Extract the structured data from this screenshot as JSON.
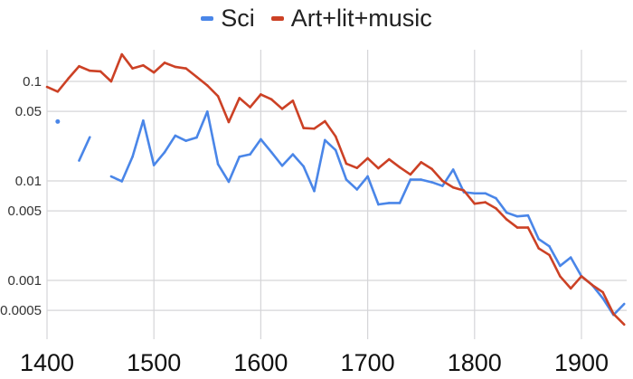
{
  "chart_data": {
    "type": "line",
    "title": "",
    "xlabel": "",
    "ylabel": "",
    "y_scale": "log",
    "xlim": [
      1400,
      1942
    ],
    "ylim": [
      0.00034,
      0.19
    ],
    "grid": true,
    "legend_position": "top",
    "x_ticks": [
      1400,
      1500,
      1600,
      1700,
      1800,
      1900
    ],
    "x_tick_labels": [
      "1400",
      "1500",
      "1600",
      "1700",
      "1800",
      "1900"
    ],
    "y_ticks": [
      0.1,
      0.05,
      0.01,
      0.005,
      0.001,
      0.0005
    ],
    "y_tick_labels": [
      "0.1",
      "0.05",
      "0.01",
      "0.005",
      "0.001",
      "0.0005"
    ],
    "x": [
      1400,
      1410,
      1420,
      1430,
      1440,
      1450,
      1460,
      1470,
      1480,
      1490,
      1500,
      1510,
      1520,
      1530,
      1540,
      1550,
      1560,
      1570,
      1580,
      1590,
      1600,
      1610,
      1620,
      1630,
      1640,
      1650,
      1660,
      1670,
      1680,
      1690,
      1700,
      1710,
      1720,
      1730,
      1740,
      1750,
      1760,
      1770,
      1780,
      1790,
      1800,
      1810,
      1820,
      1830,
      1840,
      1850,
      1860,
      1870,
      1880,
      1890,
      1900,
      1910,
      1920,
      1930,
      1940
    ],
    "series": [
      {
        "name": "Sci",
        "color": "#4a86e8",
        "values": [
          null,
          0.0395,
          null,
          0.016,
          0.0275,
          null,
          0.0111,
          0.0099,
          0.0175,
          0.0404,
          0.0144,
          0.0194,
          0.0285,
          0.0253,
          0.0273,
          0.0498,
          0.0147,
          0.0098,
          0.0175,
          0.0185,
          0.0262,
          0.0194,
          0.0142,
          0.0185,
          0.014,
          0.0079,
          0.0257,
          0.0204,
          0.0103,
          0.0082,
          0.0111,
          0.0058,
          0.006,
          0.006,
          0.0103,
          0.0103,
          0.0097,
          0.0089,
          0.013,
          0.0077,
          0.0075,
          0.0075,
          0.0067,
          0.0048,
          0.0044,
          0.0045,
          0.0026,
          0.0022,
          0.0014,
          0.0017,
          0.0011,
          0.0009,
          0.00066,
          0.00045,
          0.00058
        ]
      },
      {
        "name": "Art+lit+music",
        "color": "#cc4125",
        "values": [
          0.088,
          0.079,
          0.107,
          0.142,
          0.128,
          0.126,
          0.1,
          0.187,
          0.135,
          0.145,
          0.123,
          0.154,
          0.14,
          0.135,
          0.111,
          0.091,
          0.071,
          0.039,
          0.068,
          0.055,
          0.074,
          0.066,
          0.053,
          0.064,
          0.034,
          0.0335,
          0.0398,
          0.028,
          0.0149,
          0.0135,
          0.0169,
          0.0134,
          0.0165,
          0.0137,
          0.0116,
          0.0154,
          0.0132,
          0.01,
          0.0086,
          0.008,
          0.0059,
          0.0061,
          0.0053,
          0.0041,
          0.0034,
          0.0034,
          0.0021,
          0.0018,
          0.0011,
          0.00083,
          0.0011,
          0.0009,
          0.00076,
          0.00046,
          0.00036
        ]
      }
    ]
  }
}
